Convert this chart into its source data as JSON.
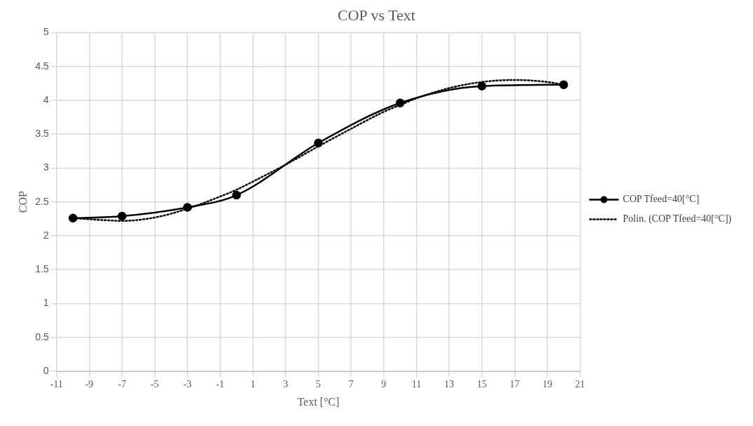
{
  "chart_data": {
    "type": "line",
    "title": "COP vs Text",
    "xlabel": "Text [°C]",
    "ylabel": "COP",
    "xlim": [
      -11,
      21
    ],
    "xticks": [
      -11,
      -9,
      -7,
      -5,
      -3,
      -1,
      1,
      3,
      5,
      7,
      9,
      11,
      13,
      15,
      17,
      19,
      21
    ],
    "ylim": [
      0,
      5
    ],
    "yticks": [
      0,
      0.5,
      1,
      1.5,
      2,
      2.5,
      3,
      3.5,
      4,
      4.5,
      5
    ],
    "grid": true,
    "legend": "right",
    "series": [
      {
        "name": "COP Tfeed=40[°C]",
        "color": "#000000",
        "marker": "circle",
        "line_style": "solid",
        "x": [
          -10,
          -7,
          -3,
          0,
          5,
          10,
          15,
          20
        ],
        "values": [
          2.26,
          2.29,
          2.42,
          2.6,
          3.37,
          3.96,
          4.21,
          4.23
        ]
      },
      {
        "name": "Polin. (COP Tfeed=40[°C])",
        "color": "#000000",
        "marker": "none",
        "line_style": "dotted",
        "x": [
          -10,
          -8,
          -7,
          -5,
          -3,
          -1,
          0,
          1,
          3,
          5,
          7,
          9,
          10,
          11,
          13,
          15,
          17,
          19,
          20
        ],
        "values": [
          2.26,
          2.23,
          2.22,
          2.27,
          2.4,
          2.58,
          2.68,
          2.8,
          3.05,
          3.32,
          3.58,
          3.83,
          3.93,
          4.03,
          4.18,
          4.27,
          4.3,
          4.27,
          4.23
        ]
      }
    ]
  }
}
